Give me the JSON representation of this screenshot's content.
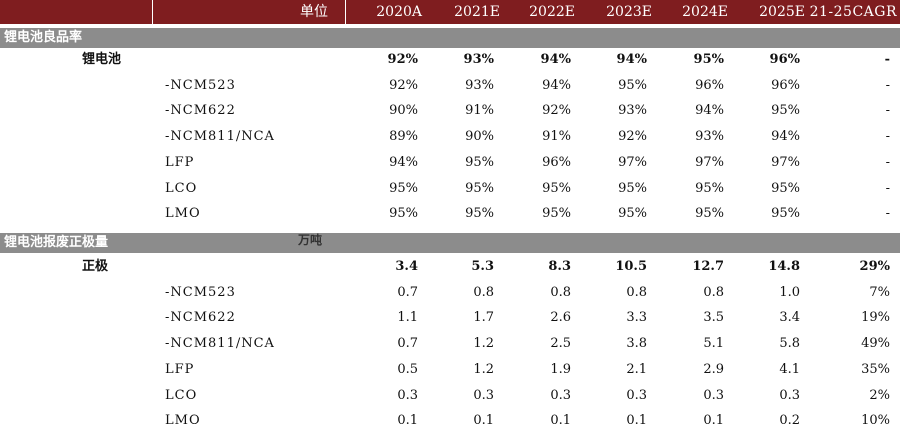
{
  "header": {
    "unit_label": "单位",
    "columns": [
      "2020A",
      "2021E",
      "2022E",
      "2023E",
      "2024E",
      "2025E",
      "21-25CAGR"
    ]
  },
  "sections": [
    {
      "title": "锂电池良品率",
      "unit": "",
      "rows": [
        {
          "label": "锂电池",
          "main": true,
          "values": [
            "92%",
            "93%",
            "94%",
            "94%",
            "95%",
            "96%",
            "-"
          ]
        },
        {
          "label": "-NCM523",
          "main": false,
          "values": [
            "92%",
            "93%",
            "94%",
            "95%",
            "96%",
            "96%",
            "-"
          ]
        },
        {
          "label": "-NCM622",
          "main": false,
          "values": [
            "90%",
            "91%",
            "92%",
            "93%",
            "94%",
            "95%",
            "-"
          ]
        },
        {
          "label": "-NCM811/NCA",
          "main": false,
          "values": [
            "89%",
            "90%",
            "91%",
            "92%",
            "93%",
            "94%",
            "-"
          ]
        },
        {
          "label": "LFP",
          "main": false,
          "values": [
            "94%",
            "95%",
            "96%",
            "97%",
            "97%",
            "97%",
            "-"
          ]
        },
        {
          "label": "LCO",
          "main": false,
          "values": [
            "95%",
            "95%",
            "95%",
            "95%",
            "95%",
            "95%",
            "-"
          ]
        },
        {
          "label": "LMO",
          "main": false,
          "values": [
            "95%",
            "95%",
            "95%",
            "95%",
            "95%",
            "95%",
            "-"
          ]
        }
      ]
    },
    {
      "title": "锂电池报废正极量",
      "unit": "万吨",
      "rows": [
        {
          "label": "正极",
          "main": true,
          "values": [
            "3.4",
            "5.3",
            "8.3",
            "10.5",
            "12.7",
            "14.8",
            "29%"
          ]
        },
        {
          "label": "-NCM523",
          "main": false,
          "values": [
            "0.7",
            "0.8",
            "0.8",
            "0.8",
            "0.8",
            "1.0",
            "7%"
          ]
        },
        {
          "label": "-NCM622",
          "main": false,
          "values": [
            "1.1",
            "1.7",
            "2.6",
            "3.3",
            "3.5",
            "3.4",
            "19%"
          ]
        },
        {
          "label": "-NCM811/NCA",
          "main": false,
          "values": [
            "0.7",
            "1.2",
            "2.5",
            "3.8",
            "5.1",
            "5.8",
            "49%"
          ]
        },
        {
          "label": "LFP",
          "main": false,
          "values": [
            "0.5",
            "1.2",
            "1.9",
            "2.1",
            "2.9",
            "4.1",
            "35%"
          ]
        },
        {
          "label": "LCO",
          "main": false,
          "values": [
            "0.3",
            "0.3",
            "0.3",
            "0.3",
            "0.3",
            "0.3",
            "2%"
          ]
        },
        {
          "label": "LMO",
          "main": false,
          "values": [
            "0.1",
            "0.1",
            "0.1",
            "0.1",
            "0.1",
            "0.2",
            "10%"
          ]
        }
      ]
    }
  ]
}
